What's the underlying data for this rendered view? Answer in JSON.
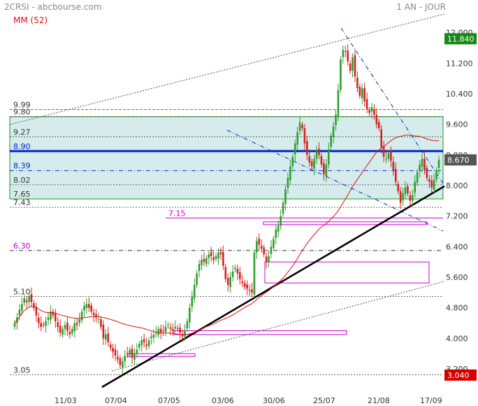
{
  "header": {
    "symbol_source": "2CRSI - abcbourse.com",
    "period": "1 AN - JOUR",
    "ma_label": "MM (52)"
  },
  "colors": {
    "up": "#2e9e2e",
    "down": "#d62020",
    "ma": "#e01010",
    "zone_fill": "#d6ecec",
    "zone_border": "#1a9a1a",
    "resistance": "#0026c8",
    "magenta": "#cc00cc",
    "last_price_bg": "#555555",
    "high_bg": "#138a13",
    "low_bg": "#d40000"
  },
  "chart_data": {
    "type": "candlestick",
    "period": "1 year, daily",
    "y_ticks": [
      3.2,
      4.0,
      4.8,
      5.6,
      6.4,
      7.2,
      8.0,
      8.8,
      9.6,
      10.4,
      11.2,
      12.0
    ],
    "y_tick_labels": [
      "3.200",
      "4.000",
      "4.800",
      "5.600",
      "6.400",
      "7.200",
      "8.000",
      "8.800",
      "9.600",
      "10.400",
      "11.200",
      "12.000"
    ],
    "x_labels": [
      "11/03",
      "07/04",
      "07/05",
      "03/06",
      "30/06",
      "25/07",
      "21/08",
      "17/09"
    ],
    "last_price": "8.670",
    "high_marker": "11.840",
    "low_marker": "3.040",
    "level_labels": [
      "9.99",
      "9.80",
      "9.27",
      "8.90",
      "8.39",
      "8.02",
      "7.65",
      "7.43",
      "7.15",
      "6.30",
      "5.10",
      "3.05"
    ],
    "level_values": [
      9.99,
      9.8,
      9.27,
      8.9,
      8.39,
      8.02,
      7.65,
      7.43,
      7.15,
      6.3,
      5.1,
      3.05
    ],
    "moving_average": "MM (52)",
    "closes": [
      4.4,
      4.55,
      4.75,
      4.9,
      5.05,
      4.95,
      5.1,
      4.95,
      4.8,
      4.6,
      4.4,
      4.3,
      4.35,
      4.45,
      4.55,
      4.7,
      4.6,
      4.45,
      4.3,
      4.15,
      4.25,
      4.35,
      4.2,
      4.1,
      4.25,
      4.4,
      4.35,
      4.5,
      4.7,
      4.85,
      4.9,
      4.8,
      4.7,
      4.6,
      4.55,
      4.5,
      4.3,
      4.0,
      4.1,
      3.9,
      3.75,
      3.65,
      3.55,
      3.45,
      3.3,
      3.4,
      3.55,
      3.6,
      3.7,
      3.5,
      3.6,
      3.7,
      3.85,
      3.95,
      3.9,
      3.8,
      3.95,
      4.05,
      4.1,
      4.15,
      4.25,
      4.15,
      4.2,
      4.3,
      4.35,
      4.25,
      4.2,
      4.3,
      4.25,
      4.15,
      4.05,
      4.2,
      4.45,
      4.8,
      5.1,
      5.4,
      5.7,
      5.95,
      6.05,
      6.0,
      6.1,
      6.2,
      6.15,
      6.05,
      6.15,
      6.25,
      6.2,
      5.9,
      5.55,
      5.4,
      5.6,
      5.75,
      5.85,
      5.7,
      5.55,
      5.45,
      5.35,
      5.3,
      5.25,
      5.2,
      6.25,
      6.55,
      6.45,
      6.35,
      6.2,
      6.0,
      6.15,
      6.4,
      6.6,
      6.85,
      6.95,
      7.2,
      7.55,
      7.9,
      8.2,
      8.5,
      8.75,
      9.1,
      9.4,
      9.65,
      9.5,
      9.1,
      8.8,
      8.6,
      8.5,
      8.7,
      8.9,
      8.8,
      8.55,
      8.3,
      8.55,
      8.95,
      9.3,
      9.55,
      9.85,
      10.5,
      11.3,
      11.55,
      11.5,
      11.25,
      11.0,
      11.35,
      10.85,
      10.55,
      10.35,
      10.55,
      10.2,
      10.0,
      9.9,
      10.05,
      9.85,
      9.6,
      9.5,
      9.0,
      8.75,
      8.7,
      8.85,
      8.65,
      8.4,
      8.1,
      7.85,
      7.55,
      7.8,
      7.95,
      7.8,
      7.6,
      7.75,
      8.1,
      8.35,
      8.55,
      8.7,
      8.4,
      8.2,
      8.1,
      7.95,
      8.15,
      8.4,
      8.67
    ]
  }
}
